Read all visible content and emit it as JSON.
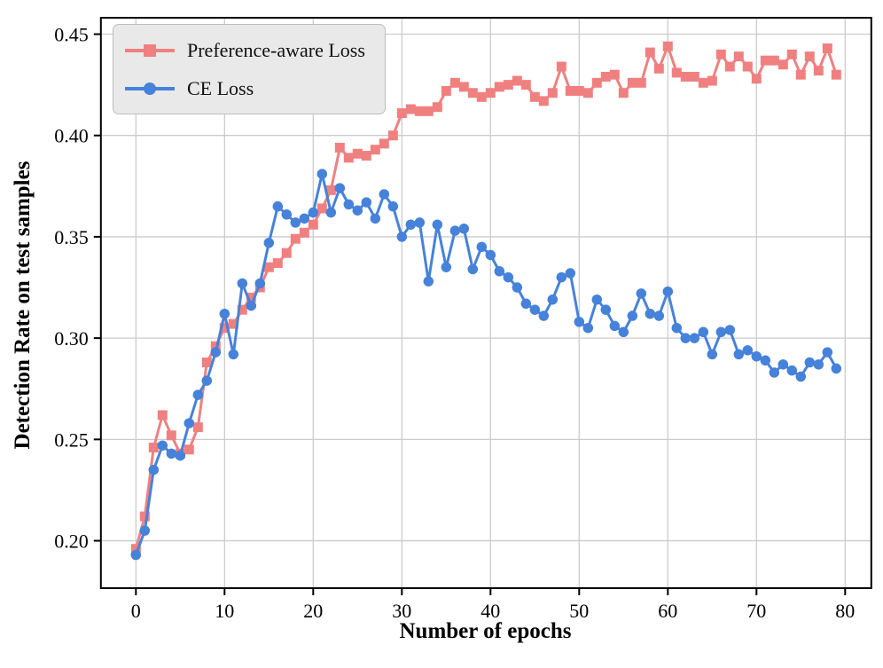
{
  "figure": {
    "background": "#ffffff",
    "text_color": "#000000",
    "spine_color": "#000000"
  },
  "chart_data": {
    "type": "line",
    "title": "",
    "xlabel": "Number of epochs",
    "ylabel": "Detection Rate on test samples",
    "xlim": [
      -3.95,
      82.95
    ],
    "ylim": [
      0.1766,
      0.4581
    ],
    "grid": true,
    "grid_color": "#cccccc",
    "legend_position": "upper left",
    "x_ticks": [
      0,
      10,
      20,
      30,
      40,
      50,
      60,
      70,
      80
    ],
    "x_tick_labels": [
      "0",
      "10",
      "20",
      "30",
      "40",
      "50",
      "60",
      "70",
      "80"
    ],
    "y_ticks": [
      0.2,
      0.25,
      0.3,
      0.35,
      0.4,
      0.45
    ],
    "y_tick_labels": [
      "0.20",
      "0.25",
      "0.30",
      "0.35",
      "0.40",
      "0.45"
    ],
    "epochs": [
      0,
      1,
      2,
      3,
      4,
      5,
      6,
      7,
      8,
      9,
      10,
      11,
      12,
      13,
      14,
      15,
      16,
      17,
      18,
      19,
      20,
      21,
      22,
      23,
      24,
      25,
      26,
      27,
      28,
      29,
      30,
      31,
      32,
      33,
      34,
      35,
      36,
      37,
      38,
      39,
      40,
      41,
      42,
      43,
      44,
      45,
      46,
      47,
      48,
      49,
      50,
      51,
      52,
      53,
      54,
      55,
      56,
      57,
      58,
      59,
      60,
      61,
      62,
      63,
      64,
      65,
      66,
      67,
      68,
      69,
      70,
      71,
      72,
      73,
      74,
      75,
      76,
      77,
      78,
      79
    ],
    "series": [
      {
        "name": "Preference-aware Loss",
        "color": "#f08080",
        "marker": "square",
        "marker_size": 11,
        "line_width": 3,
        "values": [
          0.196,
          0.212,
          0.246,
          0.262,
          0.252,
          0.243,
          0.245,
          0.256,
          0.288,
          0.296,
          0.305,
          0.307,
          0.314,
          0.32,
          0.325,
          0.335,
          0.337,
          0.342,
          0.349,
          0.352,
          0.356,
          0.364,
          0.373,
          0.394,
          0.389,
          0.391,
          0.39,
          0.393,
          0.396,
          0.4,
          0.411,
          0.413,
          0.412,
          0.412,
          0.414,
          0.422,
          0.426,
          0.424,
          0.421,
          0.419,
          0.421,
          0.424,
          0.425,
          0.427,
          0.425,
          0.419,
          0.417,
          0.421,
          0.434,
          0.422,
          0.422,
          0.421,
          0.426,
          0.429,
          0.43,
          0.421,
          0.426,
          0.426,
          0.441,
          0.433,
          0.444,
          0.431,
          0.429,
          0.429,
          0.426,
          0.427,
          0.44,
          0.434,
          0.439,
          0.434,
          0.428,
          0.437,
          0.437,
          0.435,
          0.44,
          0.43,
          0.439,
          0.432,
          0.443,
          0.43
        ]
      },
      {
        "name": "CE Loss",
        "color": "#4682d9",
        "marker": "circle",
        "marker_size": 11.5,
        "line_width": 3,
        "values": [
          0.193,
          0.205,
          0.235,
          0.247,
          0.243,
          0.242,
          0.258,
          0.272,
          0.279,
          0.293,
          0.312,
          0.292,
          0.327,
          0.316,
          0.327,
          0.347,
          0.365,
          0.361,
          0.357,
          0.359,
          0.362,
          0.381,
          0.362,
          0.374,
          0.366,
          0.363,
          0.367,
          0.359,
          0.371,
          0.365,
          0.35,
          0.356,
          0.357,
          0.328,
          0.356,
          0.335,
          0.353,
          0.354,
          0.334,
          0.345,
          0.341,
          0.333,
          0.33,
          0.325,
          0.317,
          0.314,
          0.311,
          0.319,
          0.33,
          0.332,
          0.308,
          0.305,
          0.319,
          0.314,
          0.306,
          0.303,
          0.311,
          0.322,
          0.312,
          0.311,
          0.323,
          0.305,
          0.3,
          0.3,
          0.303,
          0.292,
          0.303,
          0.304,
          0.292,
          0.294,
          0.291,
          0.289,
          0.283,
          0.287,
          0.284,
          0.281,
          0.288,
          0.287,
          0.293,
          0.285
        ]
      }
    ]
  }
}
